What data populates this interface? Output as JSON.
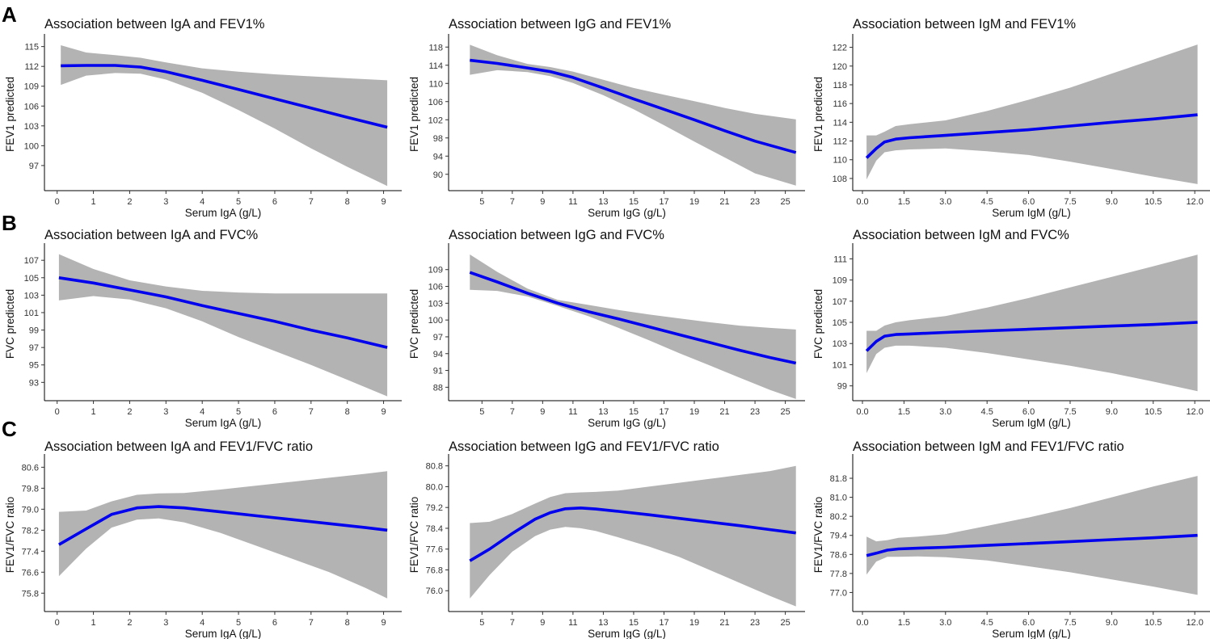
{
  "figure": {
    "colors": {
      "fit_line": "#0000ee",
      "ci_band": "#b3b3b3",
      "axis": "#000000"
    },
    "row_labels": [
      "A",
      "B",
      "C"
    ]
  },
  "chart_data": [
    {
      "type": "line",
      "row": 0,
      "col": 0,
      "title": "Association between IgA and FEV1%",
      "xlabel": "Serum IgA (g/L)",
      "ylabel": "FEV1 predicted",
      "xlim": [
        -0.35,
        9.5
      ],
      "ylim": [
        93.2,
        116.3
      ],
      "xticks": [
        0,
        1,
        2,
        3,
        4,
        5,
        6,
        7,
        8,
        9
      ],
      "xtick_labels": [
        "0",
        "1",
        "2",
        "3",
        "4",
        "5",
        "6",
        "7",
        "8",
        "9"
      ],
      "yticks": [
        97,
        100,
        103,
        106,
        109,
        112,
        115
      ],
      "ytick_labels": [
        "97",
        "100",
        "103",
        "106",
        "109",
        "112",
        "115"
      ],
      "series": [
        {
          "name": "fit",
          "x": [
            0.1,
            0.8,
            1.6,
            2.3,
            3.0,
            4.0,
            5.0,
            6.0,
            7.0,
            8.0,
            9.1
          ],
          "y": [
            112.1,
            112.15,
            112.15,
            111.9,
            111.2,
            109.9,
            108.5,
            107.1,
            105.7,
            104.3,
            102.8
          ],
          "lower": [
            109.2,
            110.6,
            111.0,
            110.9,
            110.0,
            108.0,
            105.4,
            102.6,
            99.6,
            96.8,
            93.9
          ],
          "upper": [
            115.2,
            114.1,
            113.7,
            113.3,
            112.6,
            111.7,
            111.2,
            110.8,
            110.5,
            110.2,
            109.9
          ]
        }
      ]
    },
    {
      "type": "line",
      "row": 0,
      "col": 1,
      "title": "Association between IgG and FEV1%",
      "xlabel": "Serum IgG (g/L)",
      "ylabel": "FEV1 predicted",
      "xlim": [
        2.8,
        26.3
      ],
      "ylim": [
        86.4,
        120.0
      ],
      "xticks": [
        5,
        7,
        9,
        11,
        13,
        15,
        17,
        19,
        21,
        23,
        25
      ],
      "xtick_labels": [
        "5",
        "7",
        "9",
        "11",
        "13",
        "15",
        "17",
        "19",
        "21",
        "23",
        "25"
      ],
      "yticks": [
        90,
        94,
        98,
        102,
        106,
        110,
        114,
        118
      ],
      "ytick_labels": [
        "90",
        "94",
        "98",
        "102",
        "106",
        "110",
        "114",
        "118"
      ],
      "series": [
        {
          "name": "fit",
          "x": [
            4.2,
            6.0,
            8.0,
            9.5,
            11.0,
            13.0,
            15.0,
            17.0,
            19.0,
            21.0,
            23.0,
            25.7
          ],
          "y": [
            115.1,
            114.4,
            113.4,
            112.6,
            111.3,
            109.0,
            106.6,
            104.3,
            102.0,
            99.6,
            97.3,
            94.8
          ],
          "lower": [
            111.9,
            112.9,
            112.5,
            111.6,
            110.1,
            107.4,
            104.3,
            100.8,
            97.2,
            93.7,
            90.2,
            87.5
          ],
          "upper": [
            118.5,
            116.2,
            114.3,
            113.6,
            112.6,
            110.8,
            109.0,
            107.5,
            106.1,
            104.6,
            103.3,
            102.1
          ]
        }
      ]
    },
    {
      "type": "line",
      "row": 0,
      "col": 2,
      "title": "Association between IgM and FEV1%",
      "xlabel": "Serum IgM (g/L)",
      "ylabel": "FEV1 predicted",
      "xlim": [
        -0.35,
        12.55
      ],
      "ylim": [
        106.7,
        123.0
      ],
      "xticks": [
        0.0,
        1.5,
        3.0,
        4.5,
        6.0,
        7.5,
        9.0,
        10.5,
        12.0
      ],
      "xtick_labels": [
        "0.0",
        "1.5",
        "3.0",
        "4.5",
        "6.0",
        "7.5",
        "9.0",
        "10.5",
        "12.0"
      ],
      "yticks": [
        108,
        110,
        112,
        114,
        116,
        118,
        120,
        122
      ],
      "ytick_labels": [
        "108",
        "110",
        "112",
        "114",
        "116",
        "118",
        "120",
        "122"
      ],
      "series": [
        {
          "name": "fit",
          "x": [
            0.15,
            0.5,
            0.8,
            1.2,
            1.7,
            3.0,
            4.5,
            6.0,
            7.5,
            9.0,
            10.5,
            12.1
          ],
          "y": [
            110.2,
            111.2,
            111.9,
            112.2,
            112.35,
            112.6,
            112.9,
            113.2,
            113.6,
            114.0,
            114.35,
            114.8
          ],
          "lower": [
            107.9,
            109.9,
            110.8,
            111.0,
            111.1,
            111.2,
            110.9,
            110.5,
            109.8,
            109.0,
            108.2,
            107.4
          ],
          "upper": [
            112.6,
            112.6,
            113.0,
            113.6,
            113.8,
            114.2,
            115.2,
            116.4,
            117.7,
            119.2,
            120.7,
            122.3
          ]
        }
      ]
    },
    {
      "type": "line",
      "row": 1,
      "col": 0,
      "title": "Association between IgA and FVC%",
      "xlabel": "Serum IgA (g/L)",
      "ylabel": "FVC predicted",
      "xlim": [
        -0.35,
        9.5
      ],
      "ylim": [
        90.9,
        108.5
      ],
      "xticks": [
        0,
        1,
        2,
        3,
        4,
        5,
        6,
        7,
        8,
        9
      ],
      "xtick_labels": [
        "0",
        "1",
        "2",
        "3",
        "4",
        "5",
        "6",
        "7",
        "8",
        "9"
      ],
      "yticks": [
        93,
        95,
        97,
        99,
        101,
        103,
        105,
        107
      ],
      "ytick_labels": [
        "93",
        "95",
        "97",
        "99",
        "101",
        "103",
        "105",
        "107"
      ],
      "series": [
        {
          "name": "fit",
          "x": [
            0.05,
            1.0,
            2.0,
            3.0,
            4.0,
            5.0,
            6.0,
            7.0,
            8.0,
            9.1
          ],
          "y": [
            105.0,
            104.4,
            103.6,
            102.8,
            101.8,
            100.9,
            100.0,
            99.0,
            98.1,
            97.0
          ],
          "lower": [
            102.4,
            102.9,
            102.5,
            101.5,
            100.0,
            98.2,
            96.6,
            95.0,
            93.3,
            91.4
          ],
          "upper": [
            107.7,
            106.0,
            104.7,
            104.0,
            103.5,
            103.3,
            103.2,
            103.2,
            103.2,
            103.2
          ]
        }
      ]
    },
    {
      "type": "line",
      "row": 1,
      "col": 1,
      "title": "Association between IgG and FVC%",
      "xlabel": "Serum IgG (g/L)",
      "ylabel": "FVC predicted",
      "xlim": [
        2.8,
        26.3
      ],
      "ylim": [
        85.6,
        113.0
      ],
      "xticks": [
        5,
        7,
        9,
        11,
        13,
        15,
        17,
        19,
        21,
        23,
        25
      ],
      "xtick_labels": [
        "5",
        "7",
        "9",
        "11",
        "13",
        "15",
        "17",
        "19",
        "21",
        "23",
        "25"
      ],
      "yticks": [
        88,
        91,
        94,
        97,
        100,
        103,
        106,
        109
      ],
      "ytick_labels": [
        "88",
        "91",
        "94",
        "97",
        "100",
        "103",
        "106",
        "109"
      ],
      "series": [
        {
          "name": "fit",
          "x": [
            4.2,
            6.0,
            8.0,
            10.0,
            12.0,
            14.0,
            16.0,
            18.0,
            20.0,
            22.0,
            24.0,
            25.7
          ],
          "y": [
            108.5,
            106.8,
            104.8,
            103.0,
            101.5,
            100.2,
            98.8,
            97.4,
            96.0,
            94.6,
            93.3,
            92.3
          ],
          "lower": [
            105.4,
            105.2,
            104.2,
            102.5,
            100.7,
            98.6,
            96.4,
            94.1,
            91.9,
            89.7,
            87.5,
            85.9
          ],
          "upper": [
            111.7,
            108.6,
            105.6,
            103.6,
            102.7,
            101.8,
            101.0,
            100.3,
            99.6,
            99.0,
            98.6,
            98.3
          ]
        }
      ]
    },
    {
      "type": "line",
      "row": 1,
      "col": 2,
      "title": "Association between IgM and FVC%",
      "xlabel": "Serum IgM (g/L)",
      "ylabel": "FVC predicted",
      "xlim": [
        -0.35,
        12.55
      ],
      "ylim": [
        97.6,
        112.1
      ],
      "xticks": [
        0.0,
        1.5,
        3.0,
        4.5,
        6.0,
        7.5,
        9.0,
        10.5,
        12.0
      ],
      "xtick_labels": [
        "0.0",
        "1.5",
        "3.0",
        "4.5",
        "6.0",
        "7.5",
        "9.0",
        "10.5",
        "12.0"
      ],
      "yticks": [
        99,
        101,
        103,
        105,
        107,
        109,
        111
      ],
      "ytick_labels": [
        "99",
        "101",
        "103",
        "105",
        "107",
        "109",
        "111"
      ],
      "series": [
        {
          "name": "fit",
          "x": [
            0.15,
            0.5,
            0.8,
            1.2,
            1.7,
            3.0,
            4.5,
            6.0,
            7.5,
            9.0,
            10.5,
            12.1
          ],
          "y": [
            102.3,
            103.2,
            103.7,
            103.85,
            103.9,
            104.05,
            104.2,
            104.35,
            104.5,
            104.65,
            104.8,
            105.0
          ],
          "lower": [
            100.2,
            102.0,
            102.6,
            102.8,
            102.8,
            102.6,
            102.1,
            101.5,
            100.9,
            100.2,
            99.4,
            98.5
          ],
          "upper": [
            104.2,
            104.2,
            104.7,
            105.0,
            105.2,
            105.6,
            106.4,
            107.3,
            108.3,
            109.3,
            110.3,
            111.4
          ]
        }
      ]
    },
    {
      "type": "line",
      "row": 2,
      "col": 0,
      "title": "Association between IgA and FEV1/FVC ratio",
      "xlabel": "Serum IgA (g/L)",
      "ylabel": "FEV1/FVC ratio",
      "xlim": [
        -0.35,
        9.5
      ],
      "ylim": [
        75.1,
        80.95
      ],
      "xticks": [
        0,
        1,
        2,
        3,
        4,
        5,
        6,
        7,
        8,
        9
      ],
      "xtick_labels": [
        "0",
        "1",
        "2",
        "3",
        "4",
        "5",
        "6",
        "7",
        "8",
        "9"
      ],
      "yticks": [
        75.8,
        76.6,
        77.4,
        78.2,
        79.0,
        79.8,
        80.6
      ],
      "ytick_labels": [
        "75.8",
        "76.6",
        "77.4",
        "78.2",
        "79.0",
        "79.8",
        "80.6"
      ],
      "series": [
        {
          "name": "fit",
          "x": [
            0.05,
            0.8,
            1.5,
            2.2,
            2.8,
            3.5,
            4.5,
            5.5,
            6.5,
            7.5,
            8.5,
            9.1
          ],
          "y": [
            77.65,
            78.25,
            78.8,
            79.05,
            79.1,
            79.05,
            78.9,
            78.75,
            78.6,
            78.45,
            78.3,
            78.2
          ],
          "lower": [
            76.45,
            77.5,
            78.3,
            78.6,
            78.65,
            78.5,
            78.1,
            77.6,
            77.1,
            76.6,
            76.0,
            75.6
          ],
          "upper": [
            78.9,
            78.95,
            79.3,
            79.55,
            79.6,
            79.62,
            79.75,
            79.9,
            80.05,
            80.2,
            80.35,
            80.45
          ]
        }
      ]
    },
    {
      "type": "line",
      "row": 2,
      "col": 1,
      "title": "Association between IgG and FEV1/FVC ratio",
      "xlabel": "Serum IgG (g/L)",
      "ylabel": "FEV1/FVC ratio",
      "xlim": [
        2.8,
        26.3
      ],
      "ylim": [
        75.2,
        81.1
      ],
      "xticks": [
        5,
        7,
        9,
        11,
        13,
        15,
        17,
        19,
        21,
        23,
        25
      ],
      "xtick_labels": [
        "5",
        "7",
        "9",
        "11",
        "13",
        "15",
        "17",
        "19",
        "21",
        "23",
        "25"
      ],
      "yticks": [
        76.0,
        76.8,
        77.6,
        78.4,
        79.2,
        80.0,
        80.8
      ],
      "ytick_labels": [
        "76.0",
        "76.8",
        "77.6",
        "78.4",
        "79.2",
        "80.0",
        "80.8"
      ],
      "series": [
        {
          "name": "fit",
          "x": [
            4.2,
            5.5,
            7.0,
            8.5,
            9.5,
            10.5,
            11.5,
            12.5,
            14.0,
            16.0,
            18.0,
            20.0,
            22.0,
            24.0,
            25.7
          ],
          "y": [
            77.15,
            77.6,
            78.2,
            78.75,
            79.0,
            79.15,
            79.18,
            79.14,
            79.05,
            78.92,
            78.78,
            78.64,
            78.5,
            78.35,
            78.22
          ],
          "lower": [
            75.7,
            76.6,
            77.5,
            78.1,
            78.35,
            78.45,
            78.4,
            78.3,
            78.05,
            77.7,
            77.3,
            76.8,
            76.3,
            75.8,
            75.4
          ],
          "upper": [
            78.6,
            78.65,
            78.95,
            79.35,
            79.6,
            79.75,
            79.78,
            79.8,
            79.85,
            80.0,
            80.15,
            80.3,
            80.45,
            80.6,
            80.8
          ]
        }
      ]
    },
    {
      "type": "line",
      "row": 2,
      "col": 2,
      "title": "Association between IgM and FEV1/FVC ratio",
      "xlabel": "Serum IgM (g/L)",
      "ylabel": "FEV1/FVC ratio",
      "xlim": [
        -0.35,
        12.55
      ],
      "ylim": [
        76.2,
        82.65
      ],
      "xticks": [
        0.0,
        1.5,
        3.0,
        4.5,
        6.0,
        7.5,
        9.0,
        10.5,
        12.0
      ],
      "xtick_labels": [
        "0.0",
        "1.5",
        "3.0",
        "4.5",
        "6.0",
        "7.5",
        "9.0",
        "10.5",
        "12.0"
      ],
      "yticks": [
        77.0,
        77.8,
        78.6,
        79.4,
        80.2,
        81.0,
        81.8
      ],
      "ytick_labels": [
        "77.0",
        "77.8",
        "78.6",
        "79.4",
        "80.2",
        "81.0",
        "81.8"
      ],
      "series": [
        {
          "name": "fit",
          "x": [
            0.15,
            0.5,
            0.9,
            1.3,
            2.0,
            3.0,
            4.5,
            6.0,
            7.5,
            9.0,
            10.5,
            12.1
          ],
          "y": [
            78.55,
            78.65,
            78.78,
            78.83,
            78.86,
            78.9,
            78.98,
            79.06,
            79.14,
            79.22,
            79.3,
            79.4
          ],
          "lower": [
            77.75,
            78.3,
            78.5,
            78.5,
            78.52,
            78.48,
            78.35,
            78.1,
            77.85,
            77.55,
            77.25,
            76.9
          ],
          "upper": [
            79.35,
            79.15,
            79.2,
            79.3,
            79.35,
            79.45,
            79.8,
            80.15,
            80.55,
            81.0,
            81.45,
            81.9
          ]
        }
      ]
    }
  ]
}
